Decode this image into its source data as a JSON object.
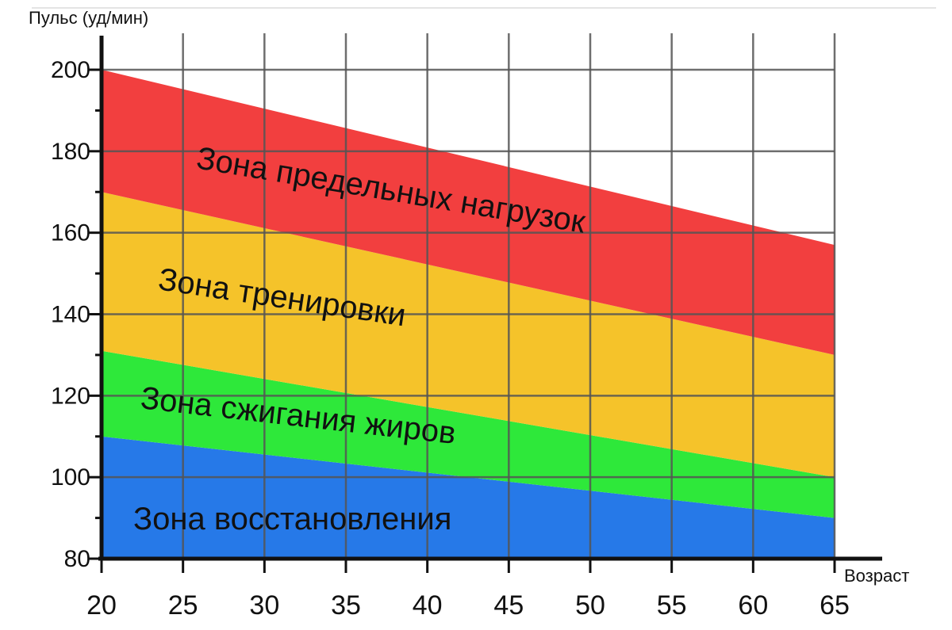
{
  "chart_data": {
    "type": "area",
    "ylabel": "Пульс (уд/мин)",
    "xlabel": "Возраст",
    "x": [
      20,
      25,
      30,
      35,
      40,
      45,
      50,
      55,
      60,
      65
    ],
    "xlim": [
      20,
      65
    ],
    "ylim": [
      80,
      200
    ],
    "y_ticks": [
      80,
      100,
      120,
      140,
      160,
      180,
      200
    ],
    "grid": true,
    "boundaries": {
      "recovery_upper": [
        110,
        90
      ],
      "fatburn_upper": [
        131,
        100
      ],
      "training_upper": [
        170,
        130
      ],
      "max_upper": [
        200,
        157
      ]
    },
    "zones": [
      {
        "name": "Зона восстановления",
        "color": "#2679e8",
        "lower": "baseline",
        "upper": "recovery_upper"
      },
      {
        "name": "Зона сжигания жиров",
        "color": "#2ee83a",
        "lower": "recovery_upper",
        "upper": "fatburn_upper"
      },
      {
        "name": "Зона тренировки",
        "color": "#f5c32a",
        "lower": "fatburn_upper",
        "upper": "training_upper"
      },
      {
        "name": "Зона предельных нагрузок",
        "color": "#f23f3f",
        "lower": "training_upper",
        "upper": "max_upper"
      }
    ]
  }
}
